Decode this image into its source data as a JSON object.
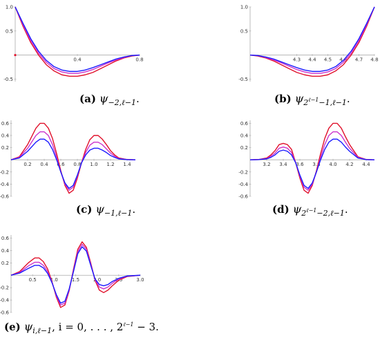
{
  "colors": {
    "blue": "#1a1aff",
    "magenta": "#cc33cc",
    "red": "#e0102a",
    "axis": "#aaaaaa",
    "dot": "#e0102a"
  },
  "captions": [
    {
      "label": "(a)",
      "sym": "ψ",
      "sub": "−2,ℓ−1",
      "tail": "."
    },
    {
      "label": "(b)",
      "sym": "ψ",
      "sub": "2",
      "sup": "ℓ−1",
      "sub_rest": "−1,ℓ−1",
      "tail": "."
    },
    {
      "label": "(c)",
      "sym": "ψ",
      "sub": "−1,ℓ−1",
      "tail": "."
    },
    {
      "label": "(d)",
      "sym": "ψ",
      "sub": "2",
      "sup": "ℓ−1",
      "sub_rest": "−2,ℓ−1",
      "tail": "."
    },
    {
      "label": "(e)",
      "sym": "ψ",
      "sub": "i,ℓ−1",
      "tail": ", i = 0, . . . , 2",
      "tail_sup": "ℓ−1",
      "tail_end": " − 3."
    }
  ],
  "chart_data": [
    {
      "id": "a",
      "type": "line",
      "xlim": [
        0,
        0.8
      ],
      "ylim": [
        -0.55,
        1.0
      ],
      "xticks": [
        {
          "v": 0.4,
          "t": "0.4"
        },
        {
          "v": 0.8,
          "t": "0.8"
        }
      ],
      "yticks": [
        {
          "v": 1.0,
          "t": "1.0"
        },
        {
          "v": 0.5,
          "t": "0.5"
        },
        {
          "v": -0.5,
          "t": "-0.5"
        }
      ],
      "marker": {
        "x": 0,
        "y": 0
      },
      "series": [
        {
          "color": "red",
          "x": [
            0,
            0.05,
            0.1,
            0.15,
            0.2,
            0.25,
            0.3,
            0.35,
            0.4,
            0.45,
            0.5,
            0.55,
            0.6,
            0.65,
            0.7,
            0.75,
            0.8
          ],
          "y": [
            1.0,
            0.6,
            0.26,
            0.0,
            -0.2,
            -0.33,
            -0.41,
            -0.44,
            -0.44,
            -0.41,
            -0.36,
            -0.28,
            -0.2,
            -0.12,
            -0.06,
            -0.02,
            0.0
          ]
        },
        {
          "color": "magenta",
          "x": [
            0,
            0.05,
            0.1,
            0.15,
            0.2,
            0.25,
            0.3,
            0.35,
            0.4,
            0.45,
            0.5,
            0.55,
            0.6,
            0.65,
            0.7,
            0.75,
            0.8
          ],
          "y": [
            1.0,
            0.63,
            0.3,
            0.04,
            -0.15,
            -0.28,
            -0.35,
            -0.38,
            -0.38,
            -0.35,
            -0.3,
            -0.23,
            -0.16,
            -0.1,
            -0.05,
            -0.01,
            0.0
          ]
        },
        {
          "color": "blue",
          "x": [
            0,
            0.05,
            0.1,
            0.15,
            0.2,
            0.25,
            0.3,
            0.35,
            0.4,
            0.45,
            0.5,
            0.55,
            0.6,
            0.65,
            0.7,
            0.75,
            0.8
          ],
          "y": [
            1.0,
            0.66,
            0.34,
            0.08,
            -0.11,
            -0.24,
            -0.31,
            -0.34,
            -0.34,
            -0.31,
            -0.26,
            -0.2,
            -0.14,
            -0.08,
            -0.04,
            -0.01,
            0.0
          ]
        }
      ]
    },
    {
      "id": "b",
      "type": "line",
      "xlim": [
        4.0,
        4.8
      ],
      "ylim": [
        -0.55,
        1.0
      ],
      "xticks": [
        {
          "v": 4.3,
          "t": "4.3"
        },
        {
          "v": 4.4,
          "t": "4.4"
        },
        {
          "v": 4.5,
          "t": "4.5"
        },
        {
          "v": 4.6,
          "t": "4.6"
        },
        {
          "v": 4.7,
          "t": "4.7"
        },
        {
          "v": 4.8,
          "t": "4.8"
        }
      ],
      "yticks": [
        {
          "v": 1.0,
          "t": "1.0"
        },
        {
          "v": 0.5,
          "t": "0.5"
        },
        {
          "v": -0.5,
          "t": "-0.5"
        }
      ],
      "series": [
        {
          "color": "red",
          "x": [
            4.0,
            4.05,
            4.1,
            4.15,
            4.2,
            4.25,
            4.3,
            4.35,
            4.4,
            4.45,
            4.5,
            4.55,
            4.6,
            4.65,
            4.7,
            4.75,
            4.8
          ],
          "y": [
            0.0,
            -0.02,
            -0.06,
            -0.12,
            -0.2,
            -0.28,
            -0.36,
            -0.41,
            -0.44,
            -0.44,
            -0.41,
            -0.33,
            -0.2,
            0.0,
            0.26,
            0.6,
            1.0
          ]
        },
        {
          "color": "magenta",
          "x": [
            4.0,
            4.05,
            4.1,
            4.15,
            4.2,
            4.25,
            4.3,
            4.35,
            4.4,
            4.45,
            4.5,
            4.55,
            4.6,
            4.65,
            4.7,
            4.75,
            4.8
          ],
          "y": [
            0.0,
            -0.01,
            -0.05,
            -0.1,
            -0.16,
            -0.23,
            -0.3,
            -0.35,
            -0.38,
            -0.38,
            -0.35,
            -0.28,
            -0.15,
            0.04,
            0.3,
            0.63,
            1.0
          ]
        },
        {
          "color": "blue",
          "x": [
            4.0,
            4.05,
            4.1,
            4.15,
            4.2,
            4.25,
            4.3,
            4.35,
            4.4,
            4.45,
            4.5,
            4.55,
            4.6,
            4.65,
            4.7,
            4.75,
            4.8
          ],
          "y": [
            0.0,
            -0.01,
            -0.04,
            -0.08,
            -0.14,
            -0.2,
            -0.26,
            -0.31,
            -0.34,
            -0.34,
            -0.31,
            -0.24,
            -0.11,
            0.08,
            0.34,
            0.66,
            1.0
          ]
        }
      ]
    },
    {
      "id": "c",
      "type": "line",
      "xlim": [
        0,
        1.5
      ],
      "ylim": [
        -0.6,
        0.65
      ],
      "xticks": [
        {
          "v": 0.2,
          "t": "0.2"
        },
        {
          "v": 0.4,
          "t": "0.4"
        },
        {
          "v": 0.6,
          "t": "0.6"
        },
        {
          "v": 0.8,
          "t": "0.8"
        },
        {
          "v": 1.0,
          "t": "1.0"
        },
        {
          "v": 1.2,
          "t": "1.2"
        },
        {
          "v": 1.4,
          "t": "1.4"
        }
      ],
      "yticks": [
        {
          "v": 0.6,
          "t": "0.6"
        },
        {
          "v": 0.4,
          "t": "0.4"
        },
        {
          "v": 0.2,
          "t": "0.2"
        },
        {
          "v": -0.2,
          "t": "-0.2"
        },
        {
          "v": -0.4,
          "t": "-0.4"
        },
        {
          "v": -0.6,
          "t": "-0.6"
        }
      ],
      "series": [
        {
          "color": "red",
          "x": [
            0,
            0.1,
            0.2,
            0.3,
            0.35,
            0.4,
            0.45,
            0.5,
            0.55,
            0.6,
            0.65,
            0.7,
            0.75,
            0.8,
            0.85,
            0.9,
            0.95,
            1.0,
            1.05,
            1.1,
            1.15,
            1.2,
            1.25,
            1.3,
            1.4,
            1.5
          ],
          "y": [
            0.0,
            0.05,
            0.25,
            0.52,
            0.6,
            0.6,
            0.52,
            0.35,
            0.1,
            -0.18,
            -0.42,
            -0.55,
            -0.5,
            -0.3,
            -0.05,
            0.17,
            0.33,
            0.4,
            0.4,
            0.34,
            0.25,
            0.15,
            0.08,
            0.03,
            0.005,
            0.0
          ]
        },
        {
          "color": "magenta",
          "x": [
            0,
            0.1,
            0.2,
            0.3,
            0.35,
            0.4,
            0.45,
            0.5,
            0.55,
            0.6,
            0.65,
            0.7,
            0.75,
            0.8,
            0.85,
            0.9,
            0.95,
            1.0,
            1.05,
            1.1,
            1.15,
            1.2,
            1.25,
            1.3,
            1.4,
            1.5
          ],
          "y": [
            0.0,
            0.04,
            0.19,
            0.4,
            0.46,
            0.46,
            0.4,
            0.25,
            0.04,
            -0.2,
            -0.4,
            -0.5,
            -0.45,
            -0.27,
            -0.05,
            0.12,
            0.24,
            0.29,
            0.29,
            0.25,
            0.18,
            0.11,
            0.06,
            0.02,
            0.004,
            0.0
          ]
        },
        {
          "color": "blue",
          "x": [
            0,
            0.1,
            0.2,
            0.3,
            0.35,
            0.4,
            0.45,
            0.5,
            0.55,
            0.6,
            0.65,
            0.7,
            0.75,
            0.8,
            0.85,
            0.9,
            0.95,
            1.0,
            1.05,
            1.1,
            1.15,
            1.2,
            1.25,
            1.3,
            1.4,
            1.5
          ],
          "y": [
            0.0,
            0.03,
            0.14,
            0.29,
            0.34,
            0.34,
            0.29,
            0.17,
            0.0,
            -0.2,
            -0.38,
            -0.47,
            -0.42,
            -0.25,
            -0.05,
            0.08,
            0.16,
            0.19,
            0.19,
            0.16,
            0.12,
            0.07,
            0.04,
            0.015,
            0.003,
            0.0
          ]
        }
      ]
    },
    {
      "id": "d",
      "type": "line",
      "xlim": [
        3.0,
        4.5
      ],
      "ylim": [
        -0.6,
        0.65
      ],
      "xticks": [
        {
          "v": 3.2,
          "t": "3.2"
        },
        {
          "v": 3.4,
          "t": "3.4"
        },
        {
          "v": 3.6,
          "t": "3.6"
        },
        {
          "v": 3.8,
          "t": "3.8"
        },
        {
          "v": 4.0,
          "t": "4.0"
        },
        {
          "v": 4.2,
          "t": "4.2"
        },
        {
          "v": 4.4,
          "t": "4.4"
        }
      ],
      "yticks": [
        {
          "v": 0.6,
          "t": "0.6"
        },
        {
          "v": 0.4,
          "t": "0.4"
        },
        {
          "v": 0.2,
          "t": "0.2"
        },
        {
          "v": -0.2,
          "t": "-0.2"
        },
        {
          "v": -0.4,
          "t": "-0.4"
        },
        {
          "v": -0.6,
          "t": "-0.6"
        }
      ],
      "series": [
        {
          "color": "red",
          "x": [
            3.0,
            3.1,
            3.2,
            3.25,
            3.3,
            3.35,
            3.4,
            3.45,
            3.5,
            3.55,
            3.6,
            3.65,
            3.7,
            3.75,
            3.8,
            3.85,
            3.9,
            3.95,
            4.0,
            4.05,
            4.1,
            4.15,
            4.2,
            4.3,
            4.4,
            4.5
          ],
          "y": [
            0.0,
            0.005,
            0.03,
            0.08,
            0.15,
            0.25,
            0.27,
            0.25,
            0.17,
            -0.05,
            -0.3,
            -0.5,
            -0.55,
            -0.42,
            -0.18,
            0.1,
            0.35,
            0.52,
            0.6,
            0.6,
            0.52,
            0.38,
            0.25,
            0.05,
            0.005,
            0.0
          ]
        },
        {
          "color": "magenta",
          "x": [
            3.0,
            3.1,
            3.2,
            3.25,
            3.3,
            3.35,
            3.4,
            3.45,
            3.5,
            3.55,
            3.6,
            3.65,
            3.7,
            3.75,
            3.8,
            3.85,
            3.9,
            3.95,
            4.0,
            4.05,
            4.1,
            4.15,
            4.2,
            4.3,
            4.4,
            4.5
          ],
          "y": [
            0.0,
            0.004,
            0.02,
            0.06,
            0.11,
            0.19,
            0.21,
            0.19,
            0.12,
            -0.05,
            -0.27,
            -0.45,
            -0.5,
            -0.4,
            -0.2,
            0.04,
            0.25,
            0.4,
            0.46,
            0.46,
            0.4,
            0.29,
            0.19,
            0.04,
            0.004,
            0.0
          ]
        },
        {
          "color": "blue",
          "x": [
            3.0,
            3.1,
            3.2,
            3.25,
            3.3,
            3.35,
            3.4,
            3.45,
            3.5,
            3.55,
            3.6,
            3.65,
            3.7,
            3.75,
            3.8,
            3.85,
            3.9,
            3.95,
            4.0,
            4.05,
            4.1,
            4.15,
            4.2,
            4.3,
            4.4,
            4.5
          ],
          "y": [
            0.0,
            0.003,
            0.015,
            0.04,
            0.08,
            0.14,
            0.16,
            0.14,
            0.08,
            -0.05,
            -0.25,
            -0.42,
            -0.47,
            -0.38,
            -0.2,
            0.0,
            0.17,
            0.29,
            0.34,
            0.34,
            0.29,
            0.21,
            0.14,
            0.03,
            0.003,
            0.0
          ]
        }
      ]
    },
    {
      "id": "e",
      "type": "line",
      "xlim": [
        0,
        3.0
      ],
      "ylim": [
        -0.6,
        0.65
      ],
      "xticks": [
        {
          "v": 0.5,
          "t": "0.5"
        },
        {
          "v": 1.0,
          "t": "1.0"
        },
        {
          "v": 1.5,
          "t": "1.5"
        },
        {
          "v": 2.0,
          "t": "2.0"
        },
        {
          "v": 2.5,
          "t": "2.5"
        },
        {
          "v": 3.0,
          "t": "3.0"
        }
      ],
      "yticks": [
        {
          "v": 0.6,
          "t": "0.6"
        },
        {
          "v": 0.4,
          "t": "0.4"
        },
        {
          "v": 0.2,
          "t": "0.2"
        },
        {
          "v": -0.2,
          "t": "-0.2"
        },
        {
          "v": -0.4,
          "t": "-0.4"
        },
        {
          "v": -0.6,
          "t": "-0.6"
        }
      ],
      "series": [
        {
          "color": "red",
          "x": [
            0,
            0.2,
            0.4,
            0.55,
            0.65,
            0.75,
            0.85,
            0.95,
            1.05,
            1.15,
            1.25,
            1.35,
            1.45,
            1.55,
            1.65,
            1.75,
            1.85,
            1.95,
            2.05,
            2.15,
            2.25,
            2.35,
            2.5,
            2.7,
            3.0
          ],
          "y": [
            0.0,
            0.06,
            0.2,
            0.28,
            0.28,
            0.22,
            0.1,
            -0.1,
            -0.35,
            -0.52,
            -0.48,
            -0.25,
            0.1,
            0.42,
            0.54,
            0.45,
            0.2,
            -0.08,
            -0.24,
            -0.28,
            -0.24,
            -0.17,
            -0.08,
            -0.02,
            0.0
          ]
        },
        {
          "color": "magenta",
          "x": [
            0,
            0.2,
            0.4,
            0.55,
            0.65,
            0.75,
            0.85,
            0.95,
            1.05,
            1.15,
            1.25,
            1.35,
            1.45,
            1.55,
            1.65,
            1.75,
            1.85,
            1.95,
            2.05,
            2.15,
            2.25,
            2.35,
            2.5,
            2.7,
            3.0
          ],
          "y": [
            0.0,
            0.045,
            0.15,
            0.21,
            0.21,
            0.16,
            0.06,
            -0.11,
            -0.33,
            -0.48,
            -0.45,
            -0.24,
            0.08,
            0.38,
            0.5,
            0.42,
            0.18,
            -0.07,
            -0.19,
            -0.22,
            -0.19,
            -0.13,
            -0.06,
            -0.015,
            0.0
          ]
        },
        {
          "color": "blue",
          "x": [
            0,
            0.2,
            0.4,
            0.55,
            0.65,
            0.75,
            0.85,
            0.95,
            1.05,
            1.15,
            1.25,
            1.35,
            1.45,
            1.55,
            1.65,
            1.75,
            1.85,
            1.95,
            2.05,
            2.15,
            2.25,
            2.35,
            2.5,
            2.7,
            3.0
          ],
          "y": [
            0.0,
            0.035,
            0.11,
            0.16,
            0.16,
            0.12,
            0.03,
            -0.12,
            -0.31,
            -0.45,
            -0.42,
            -0.22,
            0.06,
            0.35,
            0.46,
            0.39,
            0.16,
            -0.06,
            -0.15,
            -0.17,
            -0.15,
            -0.1,
            -0.05,
            -0.01,
            0.0
          ]
        }
      ]
    }
  ]
}
